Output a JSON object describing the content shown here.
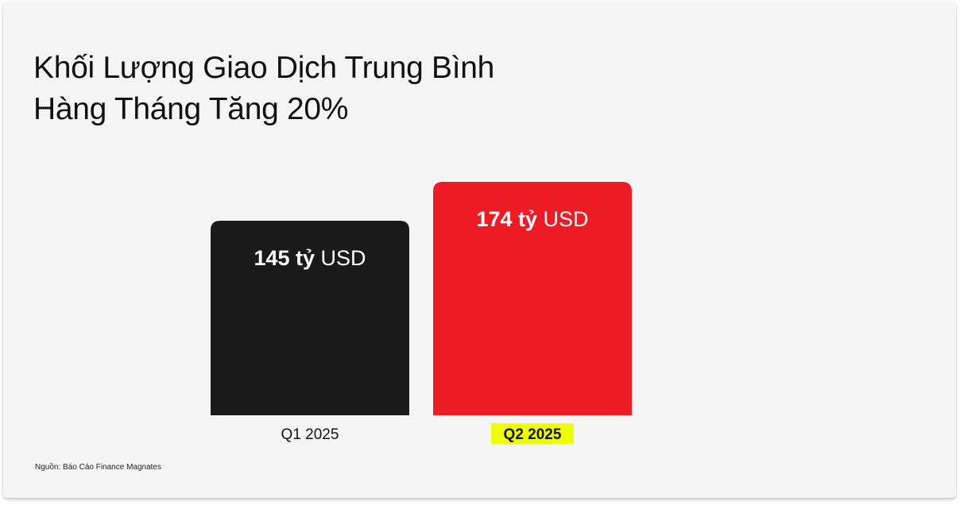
{
  "chart_data": {
    "type": "bar",
    "title_lines": [
      "Khối Lượng Giao Dịch Trung Bình",
      "Hàng Tháng Tăng 20%"
    ],
    "categories": [
      "Q1 2025",
      "Q2 2025"
    ],
    "values": [
      145,
      174
    ],
    "value_labels": [
      {
        "number": "145 tỷ",
        "unit": "USD"
      },
      {
        "number": "174 tỷ",
        "unit": "USD"
      }
    ],
    "unit": "tỷ USD",
    "colors": [
      "#1a1a1a",
      "#ed1c24"
    ],
    "highlight_category": "Q2 2025",
    "highlight_color": "#eeff00",
    "grid": false,
    "ylim": [
      0,
      174
    ]
  },
  "source": "Nguồn: Báo Cáo Finance Magnates"
}
